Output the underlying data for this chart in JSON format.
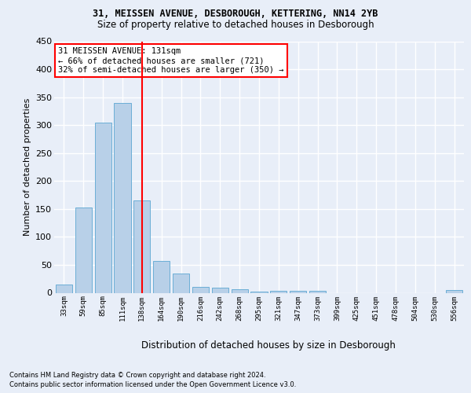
{
  "title1": "31, MEISSEN AVENUE, DESBOROUGH, KETTERING, NN14 2YB",
  "title2": "Size of property relative to detached houses in Desborough",
  "xlabel": "Distribution of detached houses by size in Desborough",
  "ylabel": "Number of detached properties",
  "categories": [
    "33sqm",
    "59sqm",
    "85sqm",
    "111sqm",
    "138sqm",
    "164sqm",
    "190sqm",
    "216sqm",
    "242sqm",
    "268sqm",
    "295sqm",
    "321sqm",
    "347sqm",
    "373sqm",
    "399sqm",
    "425sqm",
    "451sqm",
    "478sqm",
    "504sqm",
    "530sqm",
    "556sqm"
  ],
  "values": [
    15,
    153,
    305,
    340,
    165,
    57,
    35,
    10,
    9,
    6,
    2,
    4,
    4,
    4,
    0,
    0,
    0,
    0,
    0,
    0,
    5
  ],
  "bar_color": "#b8d0e8",
  "bar_edge_color": "#6baed6",
  "red_line_index": 4,
  "annotation_line1": "31 MEISSEN AVENUE: 131sqm",
  "annotation_line2": "← 66% of detached houses are smaller (721)",
  "annotation_line3": "32% of semi-detached houses are larger (350) →",
  "ylim": [
    0,
    450
  ],
  "yticks": [
    0,
    50,
    100,
    150,
    200,
    250,
    300,
    350,
    400,
    450
  ],
  "background_color": "#e8eef8",
  "grid_color": "#ffffff",
  "footnote1": "Contains HM Land Registry data © Crown copyright and database right 2024.",
  "footnote2": "Contains public sector information licensed under the Open Government Licence v3.0."
}
